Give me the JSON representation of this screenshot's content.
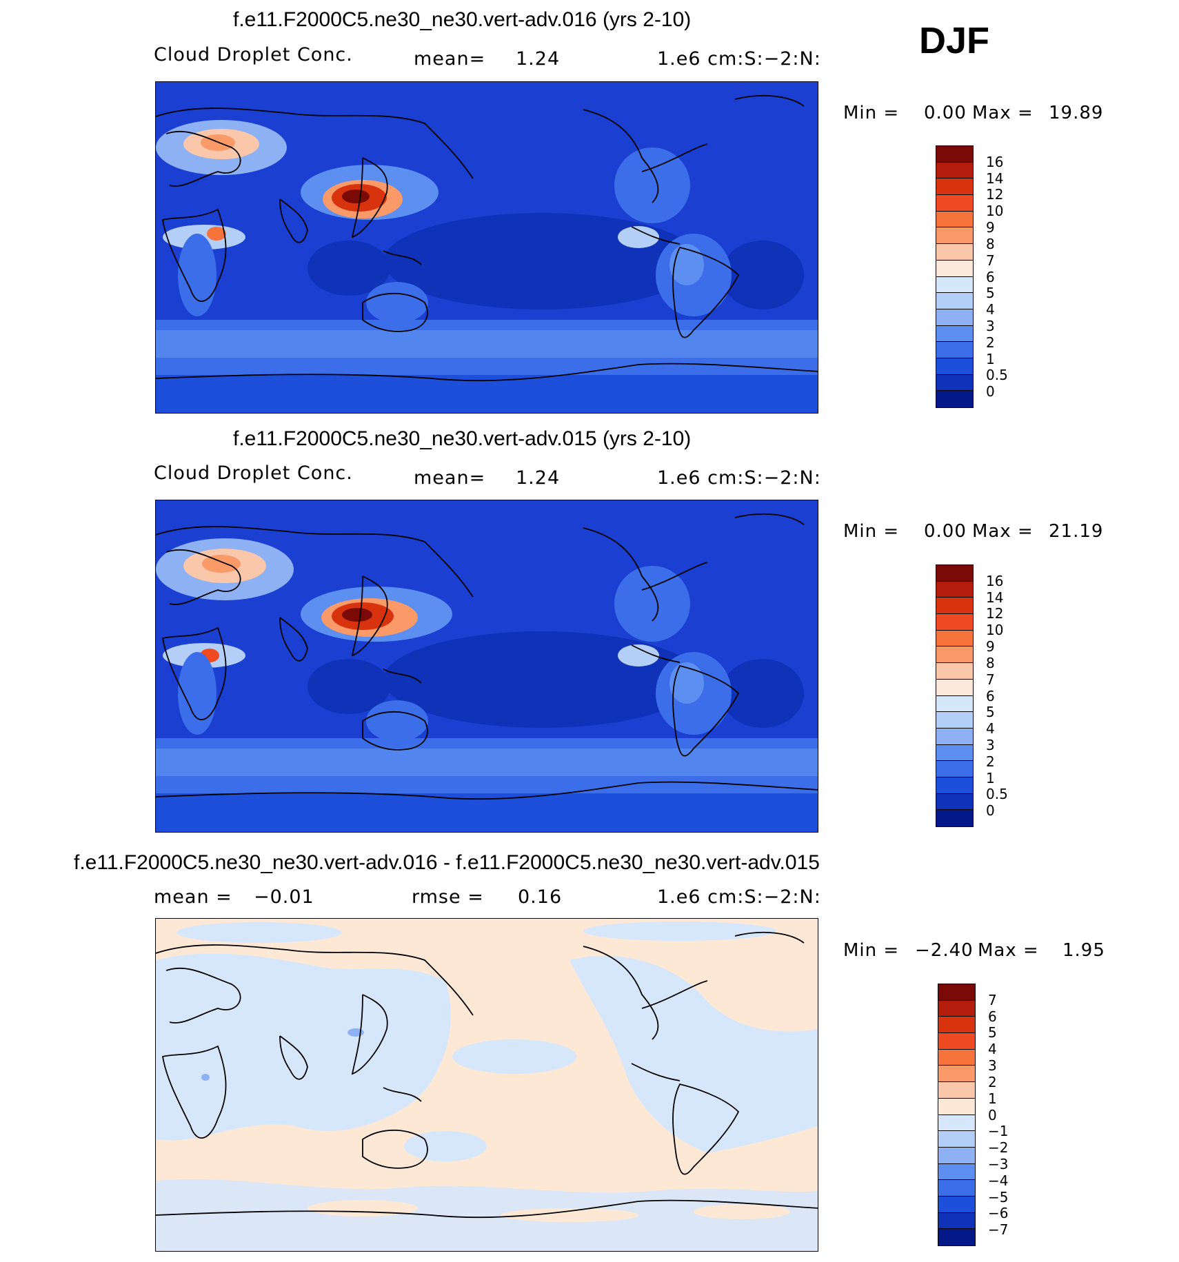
{
  "season": "DJF",
  "panels": [
    {
      "id": "top",
      "title": "f.e11.F2000C5.ne30_ne30.vert-adv.016 (yrs 2-10)",
      "variable": "Cloud Droplet Conc.",
      "stat_label": "mean=",
      "stat_value": "1.24",
      "units": "1.e6 cm:S:−2:N:",
      "min_label": "Min =",
      "min_value": "0.00",
      "max_label": "Max =",
      "max_value": "19.89",
      "background": "#1a3fd1"
    },
    {
      "id": "mid",
      "title": "f.e11.F2000C5.ne30_ne30.vert-adv.015 (yrs 2-10)",
      "variable": "Cloud Droplet Conc.",
      "stat_label": "mean=",
      "stat_value": "1.24",
      "units": "1.e6 cm:S:−2:N:",
      "min_label": "Min =",
      "min_value": "0.00",
      "max_label": "Max =",
      "max_value": "21.19",
      "background": "#1a3fd1"
    },
    {
      "id": "diff",
      "title": "f.e11.F2000C5.ne30_ne30.vert-adv.016 - f.e11.F2000C5.ne30_ne30.vert-adv.015",
      "mean_label": "mean =",
      "mean_value": "−0.01",
      "rmse_label": "rmse =",
      "rmse_value": "0.16",
      "units": "1.e6 cm:S:−2:N:",
      "min_label": "Min =",
      "min_value": "−2.40",
      "max_label": "Max =",
      "max_value": "1.95",
      "background": "#fde8d6"
    }
  ],
  "colorbars": {
    "abs": {
      "labels": [
        "16",
        "14",
        "12",
        "10",
        "9",
        "8",
        "7",
        "6",
        "5",
        "4",
        "3",
        "2",
        "1",
        "0.5",
        "0"
      ],
      "colors": [
        "#7a0a06",
        "#b41c0c",
        "#d8330f",
        "#f04a22",
        "#f6733c",
        "#f99a68",
        "#fbc7aa",
        "#fce9d9",
        "#d7e7fb",
        "#b3cff8",
        "#8eb1f4",
        "#5c8ff0",
        "#3b6ee8",
        "#1e4fda",
        "#0f32b9",
        "#041888"
      ]
    },
    "diff": {
      "labels": [
        "7",
        "6",
        "5",
        "4",
        "3",
        "2",
        "1",
        "0",
        "−1",
        "−2",
        "−3",
        "−4",
        "−5",
        "−6",
        "−7"
      ],
      "colors": [
        "#7a0a06",
        "#b41c0c",
        "#d8330f",
        "#f04a22",
        "#f6733c",
        "#f99a68",
        "#fbc7aa",
        "#fde8d6",
        "#d7e7fb",
        "#b3cff8",
        "#8eb1f4",
        "#5c8ff0",
        "#3b6ee8",
        "#1e4fda",
        "#0f32b9",
        "#041888"
      ]
    }
  },
  "chart_data": [
    {
      "type": "heatmap",
      "title": "f.e11.F2000C5.ne30_ne30.vert-adv.016 (yrs 2-10)",
      "subtitle": "Cloud Droplet Conc.",
      "units": "1.e6 cm:S:−2:N:",
      "mean": 1.24,
      "min": 0.0,
      "max": 19.89,
      "levels": [
        0,
        0.5,
        1,
        2,
        3,
        4,
        5,
        6,
        7,
        8,
        9,
        10,
        12,
        14,
        16
      ]
    },
    {
      "type": "heatmap",
      "title": "f.e11.F2000C5.ne30_ne30.vert-adv.015 (yrs 2-10)",
      "subtitle": "Cloud Droplet Conc.",
      "units": "1.e6 cm:S:−2:N:",
      "mean": 1.24,
      "min": 0.0,
      "max": 21.19,
      "levels": [
        0,
        0.5,
        1,
        2,
        3,
        4,
        5,
        6,
        7,
        8,
        9,
        10,
        12,
        14,
        16
      ]
    },
    {
      "type": "heatmap",
      "title": "f.e11.F2000C5.ne30_ne30.vert-adv.016 - f.e11.F2000C5.ne30_ne30.vert-adv.015",
      "units": "1.e6 cm:S:−2:N:",
      "mean": -0.01,
      "rmse": 0.16,
      "min": -2.4,
      "max": 1.95,
      "levels": [
        -7,
        -6,
        -5,
        -4,
        -3,
        -2,
        -1,
        0,
        1,
        2,
        3,
        4,
        5,
        6,
        7
      ]
    }
  ]
}
